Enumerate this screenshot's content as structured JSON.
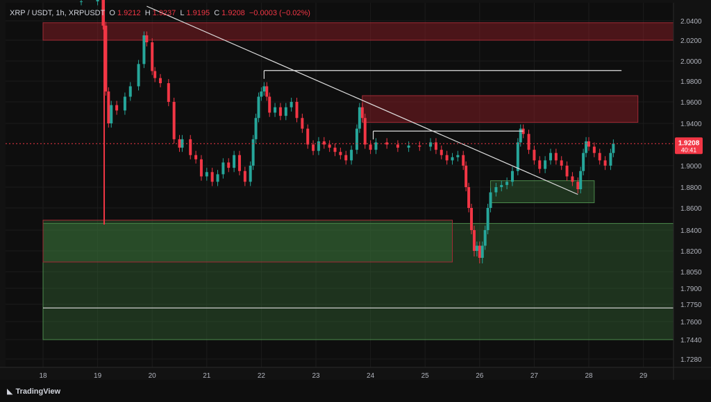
{
  "header": {
    "symbol": "XRP / USDT, 1h, XRPUSDT",
    "open_label": "O",
    "open": "1.9212",
    "high_label": "H",
    "high": "1.9237",
    "low_label": "L",
    "low": "1.9195",
    "close_label": "C",
    "close": "1.9208",
    "change": "−0.0003 (−0.02%)"
  },
  "brand": {
    "name": "TradingView",
    "icon": "tradingview-logo-icon"
  },
  "price_label": {
    "value": "1.9208",
    "timer": "40:41",
    "color": "#f23645"
  },
  "colors": {
    "up": "#26a69a",
    "down": "#f23645",
    "background": "#0e0e0e",
    "resistance": "#8c1d27",
    "support": "#2b5a2b"
  },
  "chart_data": {
    "type": "candlestick",
    "y_axis": {
      "ticks": [
        "2.0400",
        "2.0200",
        "2.0000",
        "1.9800",
        "1.9600",
        "1.9400",
        "1.9000",
        "1.8800",
        "1.8600",
        "1.8400",
        "1.8200",
        "1.8050",
        "1.7900",
        "1.7750",
        "1.7600",
        "1.7440",
        "1.7280"
      ],
      "scale": "non-linear"
    },
    "x_axis": {
      "ticks": [
        "18",
        "19",
        "20",
        "21",
        "22",
        "23",
        "24",
        "25",
        "26",
        "27",
        "28",
        "29"
      ],
      "xlim": [
        18.0,
        29.6
      ]
    },
    "last_price": 1.9208,
    "zones": [
      {
        "kind": "resistance",
        "x": [
          18.0,
          29.6
        ],
        "y": [
          2.02,
          2.038
        ]
      },
      {
        "kind": "resistance",
        "x": [
          23.85,
          28.9
        ],
        "y": [
          1.941,
          1.966
        ]
      },
      {
        "kind": "support",
        "x": [
          26.2,
          28.1
        ],
        "y": [
          1.865,
          1.886
        ]
      },
      {
        "kind": "support",
        "x": [
          18.0,
          29.6
        ],
        "y": [
          1.744,
          1.846
        ]
      },
      {
        "kind": "support",
        "x": [
          18.0,
          25.5
        ],
        "y": [
          1.812,
          1.849
        ]
      }
    ],
    "lines": [
      {
        "kind": "trendline",
        "x": [
          19.9,
          27.8
        ],
        "y": [
          2.055,
          1.873
        ]
      },
      {
        "kind": "horizontal",
        "x": [
          22.05,
          28.6
        ],
        "y": 1.9905
      },
      {
        "kind": "horizontal",
        "x": [
          24.05,
          26.8
        ],
        "y": 1.9327
      },
      {
        "kind": "horizontal",
        "x": [
          18.0,
          29.6
        ],
        "y": 1.7718
      }
    ],
    "points": [
      [
        18.5,
        2.06
      ],
      [
        18.7,
        2.06
      ],
      [
        19.0,
        2.065
      ],
      [
        19.1,
        2.035
      ],
      [
        19.15,
        1.97
      ],
      [
        19.2,
        1.94
      ],
      [
        19.25,
        1.957
      ],
      [
        19.35,
        1.952
      ],
      [
        19.5,
        1.965
      ],
      [
        19.6,
        1.975
      ],
      [
        19.75,
        1.997
      ],
      [
        19.85,
        2.025
      ],
      [
        19.9,
        2.018
      ],
      [
        20.0,
        1.99
      ],
      [
        20.05,
        1.983
      ],
      [
        20.15,
        1.978
      ],
      [
        20.3,
        1.96
      ],
      [
        20.4,
        1.925
      ],
      [
        20.5,
        1.917
      ],
      [
        20.55,
        1.925
      ],
      [
        20.7,
        1.91
      ],
      [
        20.8,
        1.906
      ],
      [
        20.9,
        1.89
      ],
      [
        21.0,
        1.894
      ],
      [
        21.1,
        1.885
      ],
      [
        21.2,
        1.892
      ],
      [
        21.3,
        1.903
      ],
      [
        21.4,
        1.898
      ],
      [
        21.5,
        1.91
      ],
      [
        21.6,
        1.895
      ],
      [
        21.7,
        1.885
      ],
      [
        21.8,
        1.9
      ],
      [
        21.85,
        1.925
      ],
      [
        21.9,
        1.945
      ],
      [
        21.95,
        1.965
      ],
      [
        22.0,
        1.97
      ],
      [
        22.05,
        1.975
      ],
      [
        22.1,
        1.965
      ],
      [
        22.15,
        1.95
      ],
      [
        22.25,
        1.955
      ],
      [
        22.35,
        1.947
      ],
      [
        22.45,
        1.955
      ],
      [
        22.55,
        1.96
      ],
      [
        22.65,
        1.945
      ],
      [
        22.75,
        1.935
      ],
      [
        22.85,
        1.92
      ],
      [
        22.95,
        1.914
      ],
      [
        23.05,
        1.923
      ],
      [
        23.15,
        1.92
      ],
      [
        23.25,
        1.917
      ],
      [
        23.35,
        1.913
      ],
      [
        23.45,
        1.91
      ],
      [
        23.55,
        1.905
      ],
      [
        23.65,
        1.915
      ],
      [
        23.75,
        1.935
      ],
      [
        23.8,
        1.955
      ],
      [
        23.85,
        1.945
      ],
      [
        23.9,
        1.92
      ],
      [
        24.0,
        1.915
      ],
      [
        24.1,
        1.922
      ],
      [
        24.3,
        1.92
      ],
      [
        24.5,
        1.917
      ],
      [
        24.7,
        1.919
      ],
      [
        24.9,
        1.918
      ],
      [
        25.1,
        1.922
      ],
      [
        25.2,
        1.915
      ],
      [
        25.3,
        1.91
      ],
      [
        25.4,
        1.905
      ],
      [
        25.5,
        1.908
      ],
      [
        25.6,
        1.91
      ],
      [
        25.7,
        1.9
      ],
      [
        25.75,
        1.88
      ],
      [
        25.8,
        1.86
      ],
      [
        25.85,
        1.84
      ],
      [
        25.9,
        1.82
      ],
      [
        25.95,
        1.825
      ],
      [
        26.0,
        1.815
      ],
      [
        26.05,
        1.825
      ],
      [
        26.1,
        1.84
      ],
      [
        26.15,
        1.86
      ],
      [
        26.2,
        1.875
      ],
      [
        26.3,
        1.88
      ],
      [
        26.4,
        1.882
      ],
      [
        26.5,
        1.885
      ],
      [
        26.6,
        1.895
      ],
      [
        26.7,
        1.922
      ],
      [
        26.75,
        1.935
      ],
      [
        26.8,
        1.93
      ],
      [
        26.9,
        1.915
      ],
      [
        27.0,
        1.905
      ],
      [
        27.1,
        1.897
      ],
      [
        27.2,
        1.905
      ],
      [
        27.3,
        1.912
      ],
      [
        27.4,
        1.905
      ],
      [
        27.5,
        1.9
      ],
      [
        27.6,
        1.89
      ],
      [
        27.7,
        1.885
      ],
      [
        27.8,
        1.878
      ],
      [
        27.85,
        1.895
      ],
      [
        27.9,
        1.912
      ],
      [
        27.95,
        1.923
      ],
      [
        28.0,
        1.918
      ],
      [
        28.1,
        1.912
      ],
      [
        28.2,
        1.905
      ],
      [
        28.3,
        1.9
      ],
      [
        28.4,
        1.912
      ],
      [
        28.45,
        1.9208
      ]
    ]
  }
}
